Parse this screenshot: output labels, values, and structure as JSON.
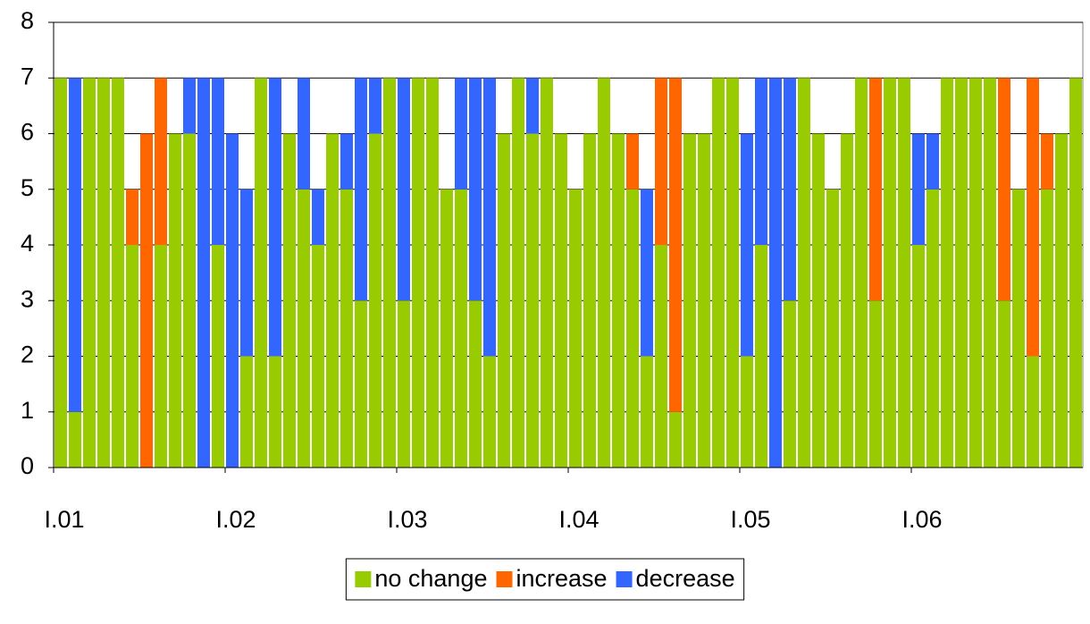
{
  "chart_data": {
    "type": "stacked_bar",
    "categories": [
      "I.01",
      null,
      null,
      null,
      null,
      null,
      null,
      null,
      null,
      null,
      null,
      null,
      "I.02",
      null,
      null,
      null,
      null,
      null,
      null,
      null,
      null,
      null,
      null,
      null,
      "I.03",
      null,
      null,
      null,
      null,
      null,
      null,
      null,
      null,
      null,
      null,
      null,
      "I.04",
      null,
      null,
      null,
      null,
      null,
      null,
      null,
      null,
      null,
      null,
      null,
      "I.05",
      null,
      null,
      null,
      null,
      null,
      null,
      null,
      null,
      null,
      null,
      null,
      "I.06",
      null,
      null,
      null,
      null,
      null,
      null,
      null,
      null,
      null,
      null,
      null
    ],
    "series": [
      {
        "name": "no change",
        "color": "#99cc00",
        "values": [
          7,
          1,
          7,
          7,
          7,
          4,
          0,
          4,
          6,
          6,
          0,
          4,
          0,
          2,
          7,
          2,
          6,
          5,
          4,
          6,
          5,
          3,
          6,
          7,
          3,
          7,
          7,
          5,
          5,
          3,
          2,
          6,
          7,
          6,
          7,
          6,
          5,
          6,
          7,
          6,
          5,
          2,
          4,
          1,
          6,
          6,
          7,
          7,
          2,
          4,
          0,
          3,
          7,
          6,
          5,
          6,
          7,
          3,
          7,
          7,
          4,
          5,
          7,
          7,
          7,
          7,
          3,
          5,
          2,
          5,
          6,
          7
        ]
      },
      {
        "name": "increase",
        "color": "#ff6600",
        "values": [
          0,
          0,
          0,
          0,
          0,
          1,
          6,
          3,
          0,
          0,
          0,
          0,
          0,
          0,
          0,
          0,
          0,
          0,
          0,
          0,
          0,
          0,
          0,
          0,
          0,
          0,
          0,
          0,
          0,
          0,
          0,
          0,
          0,
          0,
          0,
          0,
          0,
          0,
          0,
          0,
          1,
          0,
          3,
          6,
          0,
          0,
          0,
          0,
          0,
          0,
          0,
          0,
          0,
          0,
          0,
          0,
          0,
          4,
          0,
          0,
          0,
          0,
          0,
          0,
          0,
          0,
          4,
          0,
          5,
          1,
          0,
          0
        ]
      },
      {
        "name": "decrease",
        "color": "#3366ff",
        "values": [
          0,
          6,
          0,
          0,
          0,
          0,
          0,
          0,
          0,
          1,
          7,
          3,
          6,
          3,
          0,
          5,
          0,
          2,
          1,
          0,
          1,
          4,
          1,
          0,
          4,
          0,
          0,
          0,
          2,
          4,
          5,
          0,
          0,
          1,
          0,
          0,
          0,
          0,
          0,
          0,
          0,
          3,
          0,
          0,
          0,
          0,
          0,
          0,
          4,
          3,
          7,
          4,
          0,
          0,
          0,
          0,
          0,
          0,
          0,
          0,
          2,
          1,
          0,
          0,
          0,
          0,
          0,
          0,
          0,
          0,
          0,
          0
        ]
      }
    ],
    "ylim": [
      0,
      8
    ],
    "yticks": [
      0,
      1,
      2,
      3,
      4,
      5,
      6,
      7,
      8
    ],
    "grid": true,
    "legend": "bottom"
  }
}
